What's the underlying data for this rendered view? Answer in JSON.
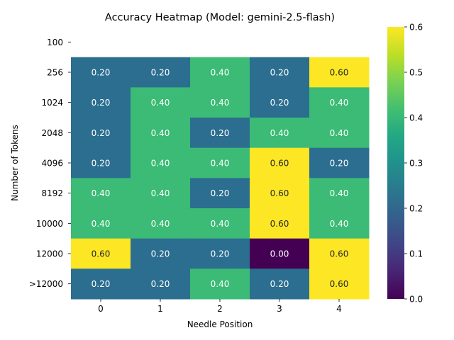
{
  "chart_data": {
    "type": "heatmap",
    "title": "Accuracy Heatmap (Model: gemini-2.5-flash)",
    "xlabel": "Needle Position",
    "ylabel": "Number of Tokens",
    "x_categories": [
      "0",
      "1",
      "2",
      "3",
      "4"
    ],
    "y_categories": [
      "100",
      "256",
      "1024",
      "2048",
      "4096",
      "8192",
      "10000",
      "12000",
      ">12000"
    ],
    "values": [
      [
        null,
        null,
        null,
        null,
        null
      ],
      [
        0.2,
        0.2,
        0.4,
        0.2,
        0.6
      ],
      [
        0.2,
        0.4,
        0.4,
        0.2,
        0.4
      ],
      [
        0.2,
        0.4,
        0.2,
        0.4,
        0.4
      ],
      [
        0.2,
        0.4,
        0.4,
        0.6,
        0.2
      ],
      [
        0.4,
        0.4,
        0.2,
        0.6,
        0.4
      ],
      [
        0.4,
        0.4,
        0.4,
        0.6,
        0.4
      ],
      [
        0.6,
        0.2,
        0.2,
        0.0,
        0.6
      ],
      [
        0.2,
        0.2,
        0.4,
        0.2,
        0.6
      ]
    ],
    "value_format": "0.00",
    "colormap": "viridis",
    "vmin": 0.0,
    "vmax": 0.6,
    "colorbar_ticks": [
      "0.0",
      "0.1",
      "0.2",
      "0.3",
      "0.4",
      "0.5",
      "0.6"
    ],
    "colors": {
      "0.0": "#440154",
      "0.2": "#2c6e8f",
      "0.4": "#3bbb75",
      "0.6": "#fde725"
    }
  }
}
